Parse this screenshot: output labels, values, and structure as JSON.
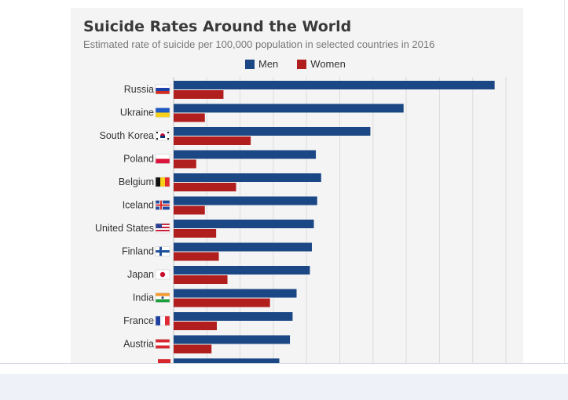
{
  "chart_data": {
    "type": "bar",
    "orientation": "horizontal",
    "title": "Suicide Rates Around the World",
    "subtitle": "Estimated rate of suicide per 100,000 population in selected countries in 2016",
    "categories": [
      "Russia",
      "Ukraine",
      "South Korea",
      "Poland",
      "Belgium",
      "Iceland",
      "United States",
      "Finland",
      "Japan",
      "India",
      "France",
      "Austria"
    ],
    "series": [
      {
        "name": "Men",
        "color": "#1c4785",
        "values": [
          48.3,
          34.6,
          29.6,
          21.4,
          22.2,
          21.6,
          21.1,
          20.8,
          20.5,
          18.5,
          17.9,
          17.5
        ]
      },
      {
        "name": "Women",
        "color": "#b01e1e",
        "values": [
          7.5,
          4.7,
          11.6,
          3.4,
          9.4,
          4.7,
          6.4,
          6.8,
          8.1,
          14.5,
          6.5,
          5.7
        ]
      }
    ],
    "partial_row": {
      "category": "",
      "men": 15.9
    },
    "xlim": [
      0,
      50
    ],
    "grid": true,
    "legend_position": "top-center",
    "flags": {
      "Russia": "flag-russia",
      "Ukraine": "flag-ukraine",
      "South Korea": "flag-south-korea",
      "Poland": "flag-poland",
      "Belgium": "flag-belgium",
      "Iceland": "flag-iceland",
      "United States": "flag-united-states",
      "Finland": "flag-finland",
      "Japan": "flag-japan",
      "India": "flag-india",
      "France": "flag-france",
      "Austria": "flag-austria"
    }
  }
}
